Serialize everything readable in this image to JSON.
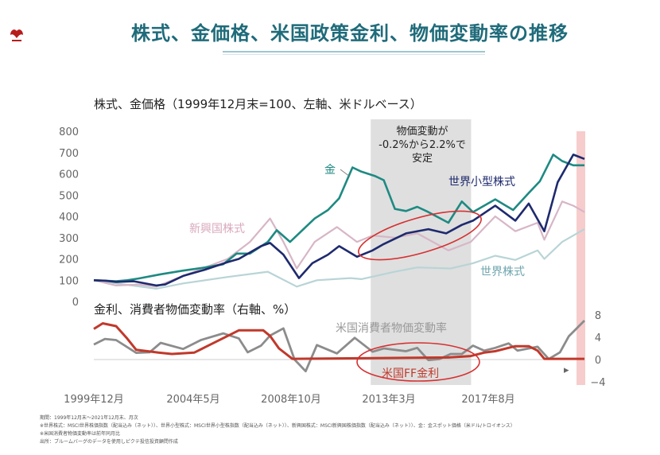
{
  "page": {
    "title": "株式、金価格、米国政策金利、物価変動率の推移",
    "top_subtitle": "株式、金価格（1999年12月末=100、左軸、米ドルベース）",
    "bottom_subtitle": "金利、消費者物価変動率（右軸、%）",
    "shade_note": "物価変動が\n-0.2%から2.2%で\n安定",
    "footnotes": [
      "期間：1999年12月末～2021年12月末、月次",
      "※世界株式：MSCI世界株価指数（配当込み（ネット））、世界小型株式：MSCI世界小型株指数（配当込み（ネット））、新興国株式：MSCI新興国株価指数（配当込み（ネット））、金：金スポット価格（米ドル/トロイオンス）",
      "※米国消費者物価変動率は前年同月比",
      "出所：ブルームバーグのデータを使用しピクテ投信投資顧問作成"
    ],
    "colors": {
      "title": "#1f6b7a",
      "gold": "#1e8a82",
      "small_cap": "#1e2a6e",
      "emerging": "#d7b6c6",
      "world": "#b9d4d6",
      "cpi": "#8c8c8c",
      "ff_rate": "#c0392b",
      "shade": "#d9d9d9",
      "recent_band": "#f1a3a3",
      "ellipse": "#d63031"
    }
  },
  "chart_data": [
    {
      "type": "line",
      "title": "株式、金価格（1999年12月末=100、左軸、米ドルベース）",
      "x_range": [
        "1999-12",
        "2021-12"
      ],
      "ylim": [
        0,
        800
      ],
      "yticks": [
        0,
        100,
        200,
        300,
        400,
        500,
        600,
        700,
        800
      ],
      "shaded_period": [
        "2012-06",
        "2016-12"
      ],
      "series": [
        {
          "name": "金",
          "points": [
            [
              2000.0,
              100
            ],
            [
              2001.0,
              95
            ],
            [
              2001.5,
              100
            ],
            [
              2002.0,
              108
            ],
            [
              2003.0,
              128
            ],
            [
              2004.0,
              145
            ],
            [
              2005.0,
              160
            ],
            [
              2005.8,
              175
            ],
            [
              2006.4,
              225
            ],
            [
              2007.0,
              225
            ],
            [
              2007.8,
              280
            ],
            [
              2008.2,
              335
            ],
            [
              2008.8,
              280
            ],
            [
              2009.2,
              320
            ],
            [
              2009.9,
              390
            ],
            [
              2010.5,
              430
            ],
            [
              2011.0,
              485
            ],
            [
              2011.6,
              630
            ],
            [
              2012.0,
              610
            ],
            [
              2012.6,
              590
            ],
            [
              2013.0,
              570
            ],
            [
              2013.5,
              435
            ],
            [
              2014.0,
              425
            ],
            [
              2014.5,
              445
            ],
            [
              2015.0,
              420
            ],
            [
              2015.9,
              370
            ],
            [
              2016.5,
              470
            ],
            [
              2017.0,
              420
            ],
            [
              2018.0,
              480
            ],
            [
              2018.8,
              430
            ],
            [
              2019.5,
              510
            ],
            [
              2020.0,
              565
            ],
            [
              2020.6,
              690
            ],
            [
              2021.0,
              660
            ],
            [
              2021.5,
              640
            ],
            [
              2022.0,
              640
            ]
          ]
        },
        {
          "name": "世界小型株式",
          "points": [
            [
              2000.0,
              100
            ],
            [
              2000.5,
              98
            ],
            [
              2001.0,
              92
            ],
            [
              2001.8,
              95
            ],
            [
              2002.8,
              75
            ],
            [
              2003.2,
              80
            ],
            [
              2004.0,
              120
            ],
            [
              2005.0,
              150
            ],
            [
              2006.0,
              185
            ],
            [
              2006.5,
              200
            ],
            [
              2007.5,
              260
            ],
            [
              2007.9,
              275
            ],
            [
              2008.5,
              220
            ],
            [
              2009.2,
              110
            ],
            [
              2009.8,
              180
            ],
            [
              2010.5,
              220
            ],
            [
              2011.0,
              260
            ],
            [
              2011.8,
              210
            ],
            [
              2012.5,
              240
            ],
            [
              2013.0,
              270
            ],
            [
              2014.0,
              320
            ],
            [
              2015.0,
              340
            ],
            [
              2015.8,
              320
            ],
            [
              2016.5,
              360
            ],
            [
              2017.0,
              380
            ],
            [
              2018.0,
              450
            ],
            [
              2018.9,
              380
            ],
            [
              2019.5,
              460
            ],
            [
              2020.2,
              330
            ],
            [
              2020.8,
              560
            ],
            [
              2021.5,
              690
            ],
            [
              2022.0,
              670
            ]
          ]
        },
        {
          "name": "新興国株式",
          "points": [
            [
              2000.0,
              100
            ],
            [
              2001.0,
              75
            ],
            [
              2002.0,
              80
            ],
            [
              2002.8,
              70
            ],
            [
              2004.0,
              120
            ],
            [
              2005.0,
              160
            ],
            [
              2006.0,
              200
            ],
            [
              2007.0,
              280
            ],
            [
              2007.9,
              390
            ],
            [
              2008.5,
              280
            ],
            [
              2009.1,
              155
            ],
            [
              2009.9,
              280
            ],
            [
              2010.9,
              350
            ],
            [
              2011.8,
              280
            ],
            [
              2012.5,
              310
            ],
            [
              2013.5,
              300
            ],
            [
              2014.5,
              320
            ],
            [
              2015.9,
              240
            ],
            [
              2016.9,
              280
            ],
            [
              2018.0,
              400
            ],
            [
              2018.9,
              330
            ],
            [
              2019.9,
              370
            ],
            [
              2020.2,
              290
            ],
            [
              2021.0,
              470
            ],
            [
              2021.5,
              450
            ],
            [
              2022.0,
              420
            ]
          ]
        },
        {
          "name": "世界株式",
          "points": [
            [
              2000.0,
              100
            ],
            [
              2001.0,
              85
            ],
            [
              2002.8,
              60
            ],
            [
              2004.0,
              85
            ],
            [
              2006.0,
              115
            ],
            [
              2007.8,
              140
            ],
            [
              2009.1,
              70
            ],
            [
              2010.0,
              100
            ],
            [
              2011.5,
              110
            ],
            [
              2012.0,
              105
            ],
            [
              2013.5,
              140
            ],
            [
              2014.5,
              160
            ],
            [
              2016.0,
              155
            ],
            [
              2017.0,
              180
            ],
            [
              2018.0,
              215
            ],
            [
              2018.9,
              195
            ],
            [
              2019.9,
              240
            ],
            [
              2020.2,
              200
            ],
            [
              2021.0,
              280
            ],
            [
              2022.0,
              340
            ]
          ]
        }
      ]
    },
    {
      "type": "line",
      "title": "金利、消費者物価変動率（右軸、%）",
      "ylim": [
        -4,
        8
      ],
      "yticks": [
        8,
        4,
        0,
        -4
      ],
      "series": [
        {
          "name": "米国消費者物価変動率",
          "points": [
            [
              2000.0,
              2.7
            ],
            [
              2000.5,
              3.7
            ],
            [
              2001.0,
              3.5
            ],
            [
              2001.9,
              1.2
            ],
            [
              2002.5,
              1.3
            ],
            [
              2003.0,
              3.0
            ],
            [
              2004.0,
              1.9
            ],
            [
              2004.8,
              3.5
            ],
            [
              2005.8,
              4.7
            ],
            [
              2006.5,
              3.8
            ],
            [
              2006.9,
              1.3
            ],
            [
              2007.5,
              2.5
            ],
            [
              2007.9,
              4.3
            ],
            [
              2008.5,
              5.6
            ],
            [
              2009.0,
              0.0
            ],
            [
              2009.5,
              -2.1
            ],
            [
              2010.0,
              2.6
            ],
            [
              2010.9,
              1.1
            ],
            [
              2011.7,
              3.9
            ],
            [
              2012.5,
              1.4
            ],
            [
              2013.0,
              2.0
            ],
            [
              2014.0,
              1.5
            ],
            [
              2014.5,
              2.1
            ],
            [
              2015.0,
              -0.1
            ],
            [
              2015.5,
              0.1
            ],
            [
              2016.0,
              1.0
            ],
            [
              2016.5,
              1.0
            ],
            [
              2017.0,
              2.5
            ],
            [
              2017.5,
              1.6
            ],
            [
              2018.0,
              2.1
            ],
            [
              2018.6,
              2.9
            ],
            [
              2019.0,
              1.6
            ],
            [
              2019.9,
              2.3
            ],
            [
              2020.4,
              0.1
            ],
            [
              2020.9,
              1.3
            ],
            [
              2021.3,
              4.2
            ],
            [
              2021.6,
              5.4
            ],
            [
              2022.0,
              7.0
            ]
          ]
        },
        {
          "name": "米国FF金利",
          "points": [
            [
              2000.0,
              5.5
            ],
            [
              2000.4,
              6.5
            ],
            [
              2001.0,
              6.0
            ],
            [
              2001.5,
              3.75
            ],
            [
              2001.9,
              1.75
            ],
            [
              2002.9,
              1.25
            ],
            [
              2003.5,
              1.0
            ],
            [
              2004.5,
              1.25
            ],
            [
              2005.0,
              2.25
            ],
            [
              2006.0,
              4.25
            ],
            [
              2006.5,
              5.25
            ],
            [
              2007.6,
              5.25
            ],
            [
              2007.9,
              4.25
            ],
            [
              2008.3,
              2.0
            ],
            [
              2008.9,
              0.125
            ],
            [
              2015.9,
              0.375
            ],
            [
              2016.9,
              0.625
            ],
            [
              2017.5,
              1.25
            ],
            [
              2018.0,
              1.5
            ],
            [
              2018.9,
              2.4
            ],
            [
              2019.5,
              2.4
            ],
            [
              2019.9,
              1.6
            ],
            [
              2020.2,
              0.125
            ],
            [
              2022.0,
              0.125
            ]
          ]
        }
      ]
    }
  ],
  "axis": {
    "x_tick_labels": [
      "1999年12月",
      "2004年5月",
      "2008年10月",
      "2013年3月",
      "2017年8月"
    ],
    "left_ticks": [
      "800",
      "700",
      "600",
      "500",
      "400",
      "300",
      "200",
      "100",
      "0"
    ],
    "right_ticks": [
      "8",
      "4",
      "0",
      "−4"
    ]
  },
  "labels": {
    "gold": "金",
    "small_cap": "世界小型株式",
    "emerging": "新興国株式",
    "world": "世界株式",
    "cpi": "米国消費者物価変動率",
    "ff": "米国FF金利"
  }
}
